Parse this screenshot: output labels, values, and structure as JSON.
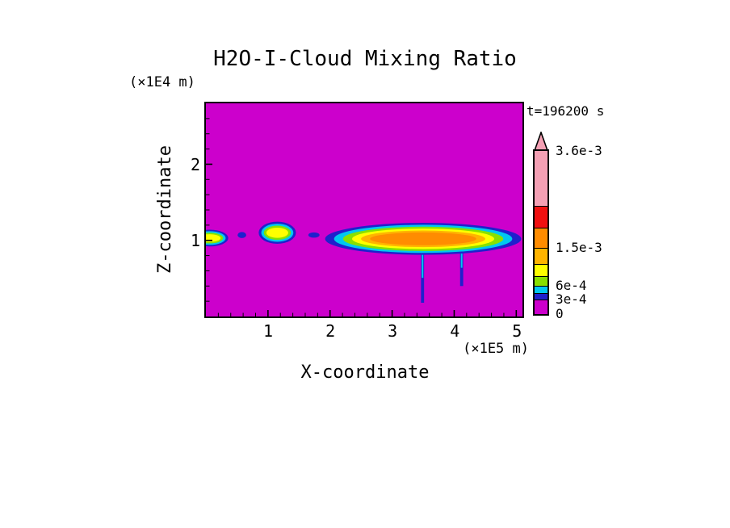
{
  "figure": {
    "title": "H2O-I-Cloud Mixing Ratio",
    "time_label": "t=196200 s",
    "z_axis": {
      "label": "Z-coordinate",
      "units_label": "(×1E4 m)"
    },
    "x_axis": {
      "label": "X-coordinate",
      "units_label": "(×1E5 m)"
    }
  },
  "chart_data": {
    "type": "heatmap",
    "title": "H2O-I-Cloud Mixing Ratio",
    "time_annotation": "t=196200 s",
    "xlabel": "X-coordinate",
    "x_units": "×1E5 m",
    "ylabel": "Z-coordinate",
    "y_units": "×1E4 m",
    "xlim": [
      0,
      5.1
    ],
    "ylim": [
      0,
      2.8
    ],
    "x_ticks": [
      1,
      2,
      3,
      4,
      5
    ],
    "y_ticks": [
      1,
      2
    ],
    "x_minor_step": 0.2,
    "y_minor_step": 0.2,
    "grid": false,
    "legend_position": "right-colorbar",
    "background_value": 0,
    "background_color": "#CC00CC",
    "contour_level_labels": [
      "0",
      "3e-4",
      "6e-4",
      "1.5e-3",
      "3.6e-3"
    ],
    "palette": [
      "#2020CC",
      "#00C8F0",
      "#88E000",
      "#FFFF00",
      "#FFB400",
      "#FF8C00"
    ],
    "colorbar": {
      "arrow_color": "#F4A0B4",
      "segments": [
        {
          "color": "#F4A0B4",
          "h": 68,
          "label_top": "3.6e-3"
        },
        {
          "color": "#F01010",
          "h": 27
        },
        {
          "color": "#FF8C00",
          "h": 25
        },
        {
          "color": "#FFB400",
          "h": 20,
          "label_top": "1.5e-3"
        },
        {
          "color": "#FFFF00",
          "h": 15
        },
        {
          "color": "#88E000",
          "h": 12
        },
        {
          "color": "#00C8F0",
          "h": 9,
          "label_top": "6e-4"
        },
        {
          "color": "#2020CC",
          "h": 8
        },
        {
          "color": "#CC00CC",
          "h": 18,
          "label_top": "3e-4",
          "label_bottom": "0"
        }
      ]
    },
    "features": [
      {
        "kind": "streak",
        "x": 3.49,
        "z_top": 1.0,
        "z_bottom": 0.18,
        "width": 0.05,
        "rings": 2,
        "peak_value": 0.0006
      },
      {
        "kind": "streak",
        "x": 4.12,
        "z_top": 1.0,
        "z_bottom": 0.4,
        "width": 0.05,
        "rings": 2,
        "peak_value": 0.0006
      },
      {
        "kind": "blob",
        "cx": 0.06,
        "cz": 1.03,
        "rx": 0.3,
        "rz": 0.11,
        "rings": 4,
        "peak_value": 0.0012
      },
      {
        "kind": "blob",
        "cx": 0.58,
        "cz": 1.07,
        "rx": 0.07,
        "rz": 0.04,
        "rings": 1,
        "peak_value": 0.0003
      },
      {
        "kind": "blob",
        "cx": 1.15,
        "cz": 1.1,
        "rx": 0.3,
        "rz": 0.145,
        "rings": 4,
        "peak_value": 0.0012
      },
      {
        "kind": "blob",
        "cx": 1.74,
        "cz": 1.07,
        "rx": 0.09,
        "rz": 0.035,
        "rings": 1,
        "peak_value": 0.0003
      },
      {
        "kind": "blob",
        "cx": 3.5,
        "cz": 1.02,
        "rx": 1.58,
        "rz": 0.21,
        "rings": 6,
        "peak_value": 0.002
      }
    ]
  }
}
